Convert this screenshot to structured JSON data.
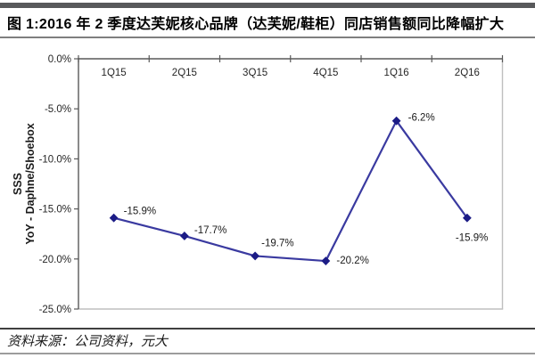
{
  "header": {
    "title": "图 1:2016 年 2 季度达芙妮核心品牌（达芙妮/鞋柜）同店销售额同比降幅扩大"
  },
  "chart_data": {
    "type": "line",
    "categories": [
      "1Q15",
      "2Q15",
      "3Q15",
      "4Q15",
      "1Q16",
      "2Q16"
    ],
    "values": [
      -15.9,
      -17.7,
      -19.7,
      -20.2,
      -6.2,
      -15.9
    ],
    "data_labels": [
      "-15.9%",
      "-17.7%",
      "-19.7%",
      "-20.2%",
      "-6.2%",
      "-15.9%"
    ],
    "title": "",
    "xlabel": "",
    "ylabel_lines": [
      "SSS",
      "YoY - Daphne/Shoebox"
    ],
    "ytick_labels": [
      "0.0%",
      "-5.0%",
      "-10.0%",
      "-15.0%",
      "-20.0%",
      "-25.0%"
    ],
    "ytick_values": [
      0,
      -5,
      -10,
      -15,
      -20,
      -25
    ],
    "ylim": [
      -25,
      0
    ],
    "grid": "off",
    "legend": "none",
    "line_color": "#3a3aa0",
    "marker_color": "#1c1c86",
    "axis_color": "#595959",
    "border_color": "#bfbfbf",
    "label_color": "#1a1a1a"
  },
  "footer": {
    "source": "资料来源：公司资料，元大"
  }
}
